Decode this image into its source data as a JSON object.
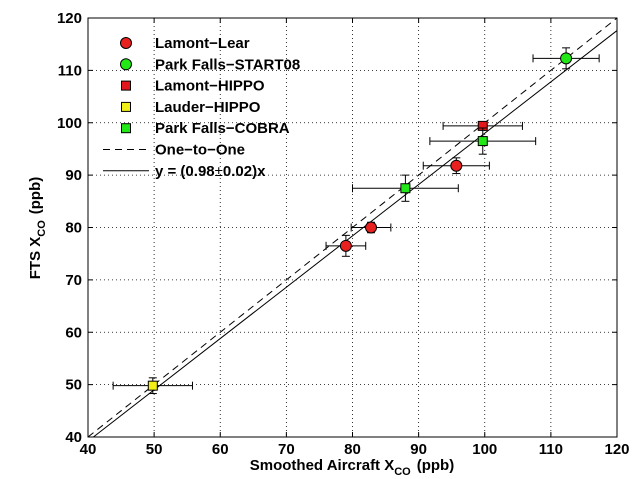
{
  "chart_data": {
    "type": "scatter",
    "title": "",
    "xlabel": {
      "main": "Smoothed Aircraft X",
      "sub": "CO",
      "unit": "(ppb)"
    },
    "ylabel": {
      "main": "FTS X",
      "sub": "CO",
      "unit": "(ppb)"
    },
    "xlim": [
      40,
      120
    ],
    "ylim": [
      40,
      120
    ],
    "xticks": [
      40,
      50,
      60,
      70,
      80,
      90,
      100,
      110,
      120
    ],
    "yticks": [
      40,
      50,
      60,
      70,
      80,
      90,
      100,
      110,
      120
    ],
    "grid": true,
    "legend_position": "top-left",
    "series": [
      {
        "name": "Lamont−Lear",
        "marker": "circle",
        "color": "#e8211f",
        "points": [
          {
            "x": 79.0,
            "y": 76.5,
            "xerr": 3.0,
            "yerr": 2.0
          },
          {
            "x": 82.8,
            "y": 80.0,
            "xerr": 3.0,
            "yerr": 1.0
          },
          {
            "x": 95.7,
            "y": 91.8,
            "xerr": 5.0,
            "yerr": 1.5
          }
        ]
      },
      {
        "name": "Park Falls−START08",
        "marker": "circle",
        "color": "#22e817",
        "points": [
          {
            "x": 112.3,
            "y": 112.3,
            "xerr": 5.0,
            "yerr": 2.0
          }
        ]
      },
      {
        "name": "Lamont−HIPPO",
        "marker": "square",
        "color": "#e3161b",
        "points": [
          {
            "x": 99.7,
            "y": 99.4,
            "xerr": 6.0,
            "yerr": 0.5
          }
        ]
      },
      {
        "name": "Lauder−HIPPO",
        "marker": "square",
        "color": "#f2ef16",
        "points": [
          {
            "x": 49.8,
            "y": 49.8,
            "xerr": 6.0,
            "yerr": 1.5
          }
        ]
      },
      {
        "name": "Park Falls−COBRA",
        "marker": "square",
        "color": "#22e817",
        "points": [
          {
            "x": 99.7,
            "y": 96.5,
            "xerr": 8.0,
            "yerr": 2.5
          },
          {
            "x": 88.0,
            "y": 87.5,
            "xerr": 8.0,
            "yerr": 2.5
          }
        ]
      }
    ],
    "lines": [
      {
        "name": "One−to−One",
        "style": "dashed",
        "slope": 1.0
      },
      {
        "name_pre": "y = (0.98",
        "name_pm": "±",
        "name_post": "0.02)x",
        "style": "solid",
        "slope": 0.98
      }
    ]
  }
}
